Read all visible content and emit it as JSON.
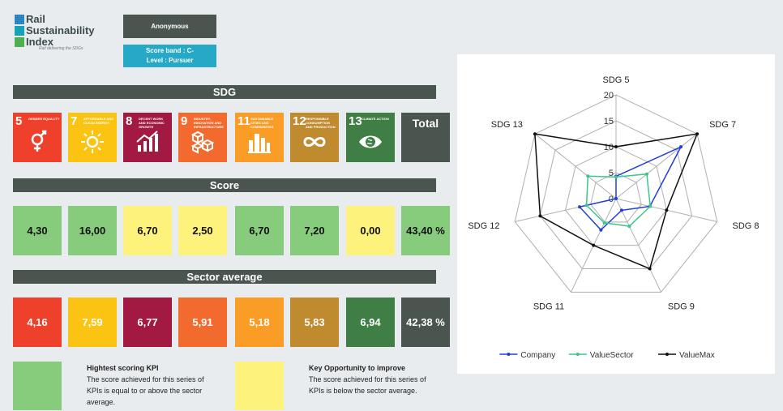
{
  "logo": {
    "words": [
      "Rail",
      "Sustainability",
      "Index"
    ],
    "tagline": "Rail delivering the SDGs"
  },
  "company_name": "Anonymous",
  "score_band": "Score band : C-",
  "level": "Level : Pursuer",
  "headers": {
    "sdg": "SDG",
    "score": "Score",
    "sector": "Sector average"
  },
  "sdgs": [
    {
      "num": "5",
      "label": "Gender equality",
      "color": "#ef402b",
      "icon": "gender-icon"
    },
    {
      "num": "7",
      "label": "Affordable and clean energy",
      "color": "#fbc412",
      "icon": "sun-icon"
    },
    {
      "num": "8",
      "label": "Decent work and economic growth",
      "color": "#a21942",
      "icon": "growth-chart-icon"
    },
    {
      "num": "9",
      "label": "Industry, innovation and infrastructure",
      "color": "#f26a2d",
      "icon": "cubes-icon"
    },
    {
      "num": "11",
      "label": "Sustainable cities and communities",
      "color": "#f99d26",
      "icon": "city-icon"
    },
    {
      "num": "12",
      "label": "Responsible consumption and production",
      "color": "#bf8b2e",
      "icon": "infinity-icon"
    },
    {
      "num": "13",
      "label": "Climate action",
      "color": "#3f7e44",
      "icon": "eye-earth-icon"
    }
  ],
  "total_label": "Total",
  "scores": [
    "4,30",
    "16,00",
    "6,70",
    "2,50",
    "6,70",
    "7,20",
    "0,00",
    "43,40 %"
  ],
  "score_colors": [
    "#87cc7c",
    "#87cc7c",
    "#fdf27c",
    "#fdf27c",
    "#87cc7c",
    "#87cc7c",
    "#fdf27c",
    "#87cc7c"
  ],
  "sector": [
    "4,16",
    "7,59",
    "6,77",
    "5,91",
    "5,18",
    "5,83",
    "6,94",
    "42,38 %"
  ],
  "sector_total_color": "#4b5550",
  "legend": {
    "high_title": "Hightest scoring KPI",
    "high_text": "The score achieved for this series of KPIs is equal to or above the sector average.",
    "high_color": "#87cc7c",
    "low_title": "Key Opportunity to improve",
    "low_text": "The score achieved for this series of KPIs is below the sector average.",
    "low_color": "#fdf27c"
  },
  "chart_data": {
    "type": "radar",
    "categories": [
      "SDG 5",
      "SDG 7",
      "SDG 8",
      "SDG 9",
      "SDG 11",
      "SDG 12",
      "SDG 13"
    ],
    "rlim": [
      0,
      20
    ],
    "ticks": [
      0,
      5,
      10,
      15,
      20
    ],
    "series": [
      {
        "name": "Company",
        "values": [
          4.3,
          16,
          6.7,
          2.5,
          6.7,
          7.2,
          0
        ],
        "color": "#1f3fd6"
      },
      {
        "name": "ValueSector",
        "values": [
          4.16,
          7.59,
          6.77,
          5.91,
          5.18,
          5.83,
          6.94
        ],
        "color": "#3cc78a"
      },
      {
        "name": "ValueMax",
        "values": [
          10,
          20,
          10,
          15,
          10,
          15,
          20
        ],
        "color": "#111111"
      }
    ],
    "legend_position": "bottom"
  }
}
